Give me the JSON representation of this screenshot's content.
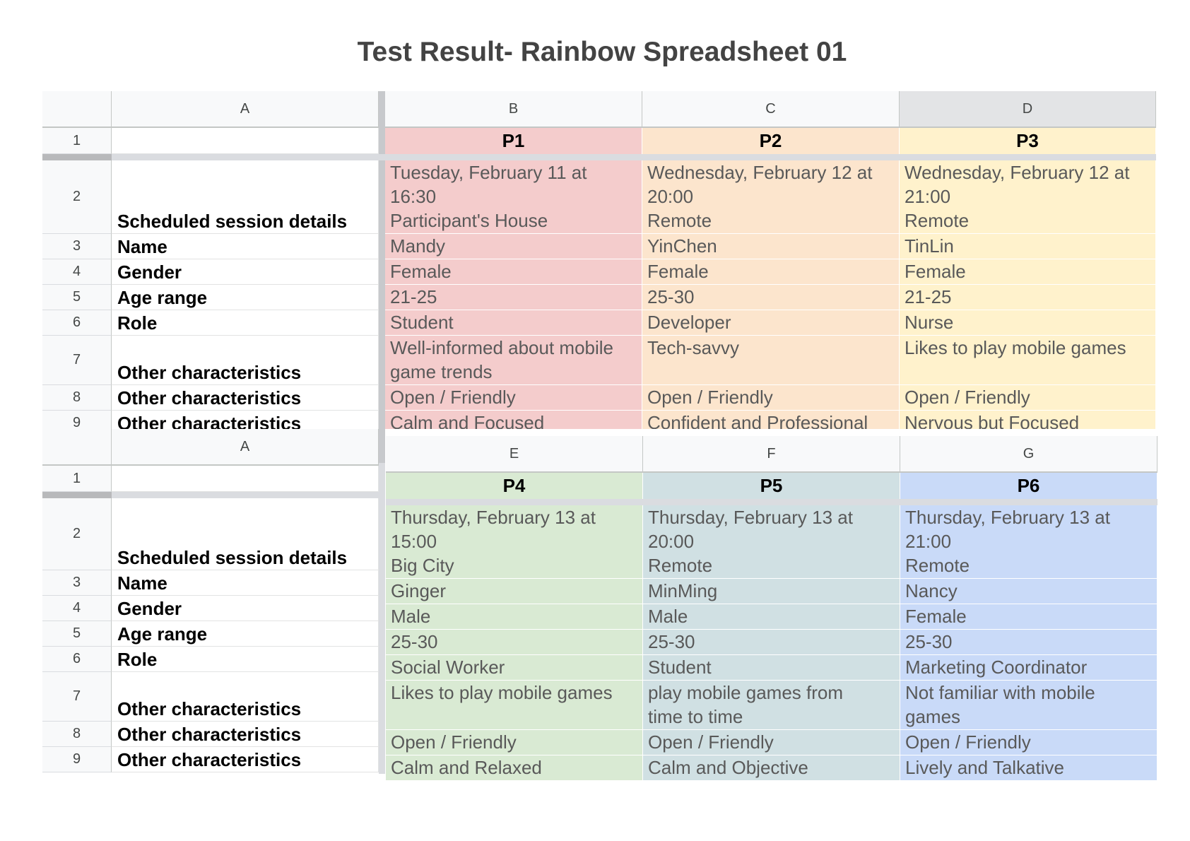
{
  "page": {
    "title": "Test Result- Rainbow Spreadsheet 01"
  },
  "colors": {
    "title_text": "#434343",
    "header_bg": "#f8f9fa",
    "selected_header_bg": "#e3e4e6",
    "p1": "#f4cccc",
    "p2": "#fce5cd",
    "p3": "#fff2cc",
    "p4": "#d9ead3",
    "p5": "#d0e0e3",
    "p6": "#c9daf8",
    "data_text": "#595959",
    "label_text": "#000000"
  },
  "sheet_top": {
    "columns": {
      "a": "A",
      "b": "B",
      "c": "C",
      "d": "D"
    },
    "rownums": [
      "1",
      "2",
      "3",
      "4",
      "5",
      "6",
      "7",
      "8",
      "9"
    ],
    "labels": {
      "r2": "Scheduled session details",
      "r3": "Name",
      "r4": "Gender",
      "r5": "Age range",
      "r6": "Role",
      "r7": "Other characteristics",
      "r8": "Other characteristics",
      "r9": "Other characteristics"
    },
    "participants": [
      {
        "id": "P1",
        "session_line1": "Tuesday, February 11 at",
        "session_line2": "16:30",
        "session_line3": "Participant's House",
        "name": "Mandy",
        "gender": "Female",
        "age": "21-25",
        "role": "Student",
        "char1_line1": "Well-informed about mobile",
        "char1_line2": "game trends",
        "char2": "Open / Friendly",
        "char3": "Calm and Focused"
      },
      {
        "id": "P2",
        "session_line1": "Wednesday, February 12 at",
        "session_line2": "20:00",
        "session_line3": "Remote",
        "name": "YinChen",
        "gender": "Female",
        "age": "25-30",
        "role": "Developer",
        "char1_line1": "Tech-savvy",
        "char1_line2": "",
        "char2": "Open / Friendly",
        "char3": "Confident and Professional"
      },
      {
        "id": "P3",
        "session_line1": "Wednesday, February 12 at",
        "session_line2": "21:00",
        "session_line3": "Remote",
        "name": "TinLin",
        "gender": "Female",
        "age": "21-25",
        "role": "Nurse",
        "char1_line1": "Likes to play mobile games",
        "char1_line2": "",
        "char2": "Open / Friendly",
        "char3": "Nervous but Focused"
      }
    ]
  },
  "sheet_bottom": {
    "columns": {
      "a": "A",
      "e": "E",
      "f": "F",
      "g": "G"
    },
    "rownums": [
      "1",
      "2",
      "3",
      "4",
      "5",
      "6",
      "7",
      "8",
      "9"
    ],
    "labels": {
      "r2": "Scheduled session details",
      "r3": "Name",
      "r4": "Gender",
      "r5": "Age range",
      "r6": "Role",
      "r7": "Other characteristics",
      "r8": "Other characteristics",
      "r9": "Other characteristics"
    },
    "participants": [
      {
        "id": "P4",
        "session_line1": "Thursday, February 13 at",
        "session_line2": "15:00",
        "session_line3": "Big City",
        "name": "Ginger",
        "gender": "Male",
        "age": "25-30",
        "role": "Social Worker",
        "char1_line1": "Likes to play mobile games",
        "char1_line2": "",
        "char2": "Open / Friendly",
        "char3": "Calm and Relaxed"
      },
      {
        "id": "P5",
        "session_line1": "Thursday, February 13 at",
        "session_line2": "20:00",
        "session_line3": "Remote",
        "name": "MinMing",
        "gender": "Male",
        "age": "25-30",
        "role": "Student",
        "char1_line1": "play mobile games from",
        "char1_line2": "time to time",
        "char2": "Open / Friendly",
        "char3": "Calm and Objective"
      },
      {
        "id": "P6",
        "session_line1": "Thursday, February 13 at",
        "session_line2": "21:00",
        "session_line3": "Remote",
        "name": "Nancy",
        "gender": "Female",
        "age": "25-30",
        "role": "Marketing Coordinator",
        "char1_line1": "Not familiar with mobile",
        "char1_line2": "games",
        "char2": "Open / Friendly",
        "char3": "Lively and Talkative"
      }
    ]
  }
}
